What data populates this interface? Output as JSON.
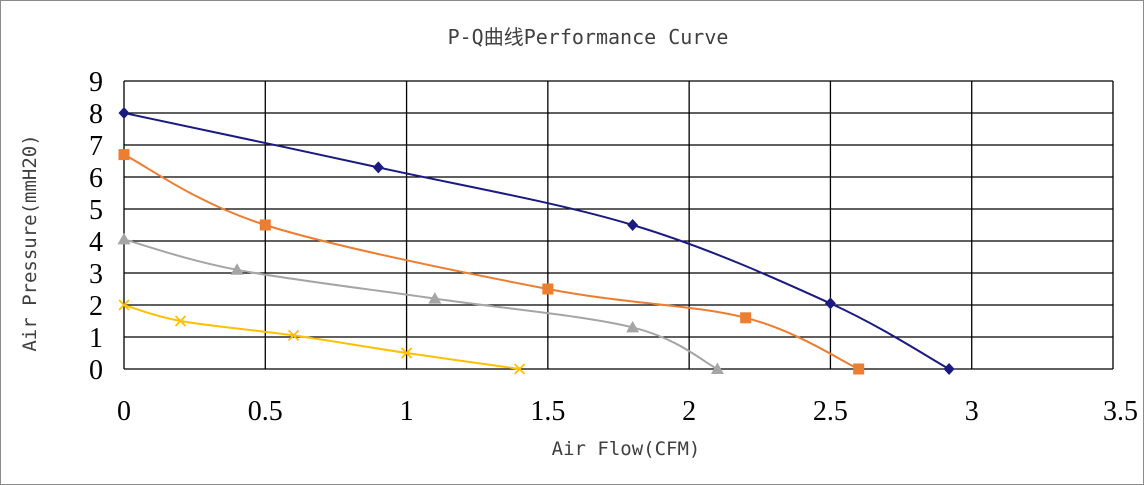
{
  "chart_data": {
    "type": "line",
    "title": "P-Q曲线Performance Curve",
    "xlabel": "Air Flow(CFM)",
    "ylabel": "Air Pressure(mmH20)",
    "xlim": [
      0,
      3.5
    ],
    "ylim": [
      0,
      9
    ],
    "x_ticks": [
      "0",
      "0.5",
      "1",
      "1.5",
      "2",
      "2.5",
      "3",
      "3.5"
    ],
    "y_ticks": [
      "0",
      "1",
      "2",
      "3",
      "4",
      "5",
      "6",
      "7",
      "8",
      "9"
    ],
    "grid": true,
    "legend": "none",
    "series": [
      {
        "color": "#1a1a80",
        "marker": "diamond",
        "points": [
          [
            0,
            8.0
          ],
          [
            0.9,
            6.3
          ],
          [
            1.8,
            4.5
          ],
          [
            2.5,
            2.05
          ],
          [
            2.92,
            0
          ]
        ]
      },
      {
        "color": "#ed7d31",
        "marker": "square",
        "points": [
          [
            0,
            6.7
          ],
          [
            0.5,
            4.5
          ],
          [
            1.5,
            2.5
          ],
          [
            2.2,
            1.6
          ],
          [
            2.6,
            0
          ]
        ]
      },
      {
        "color": "#a5a5a5",
        "marker": "triangle",
        "points": [
          [
            0,
            4.05
          ],
          [
            0.4,
            3.1
          ],
          [
            1.1,
            2.2
          ],
          [
            1.8,
            1.3
          ],
          [
            2.1,
            0
          ]
        ]
      },
      {
        "color": "#ffc000",
        "marker": "x",
        "points": [
          [
            0,
            2.0
          ],
          [
            0.2,
            1.5
          ],
          [
            0.6,
            1.05
          ],
          [
            1.0,
            0.5
          ],
          [
            1.4,
            0
          ]
        ]
      }
    ]
  }
}
